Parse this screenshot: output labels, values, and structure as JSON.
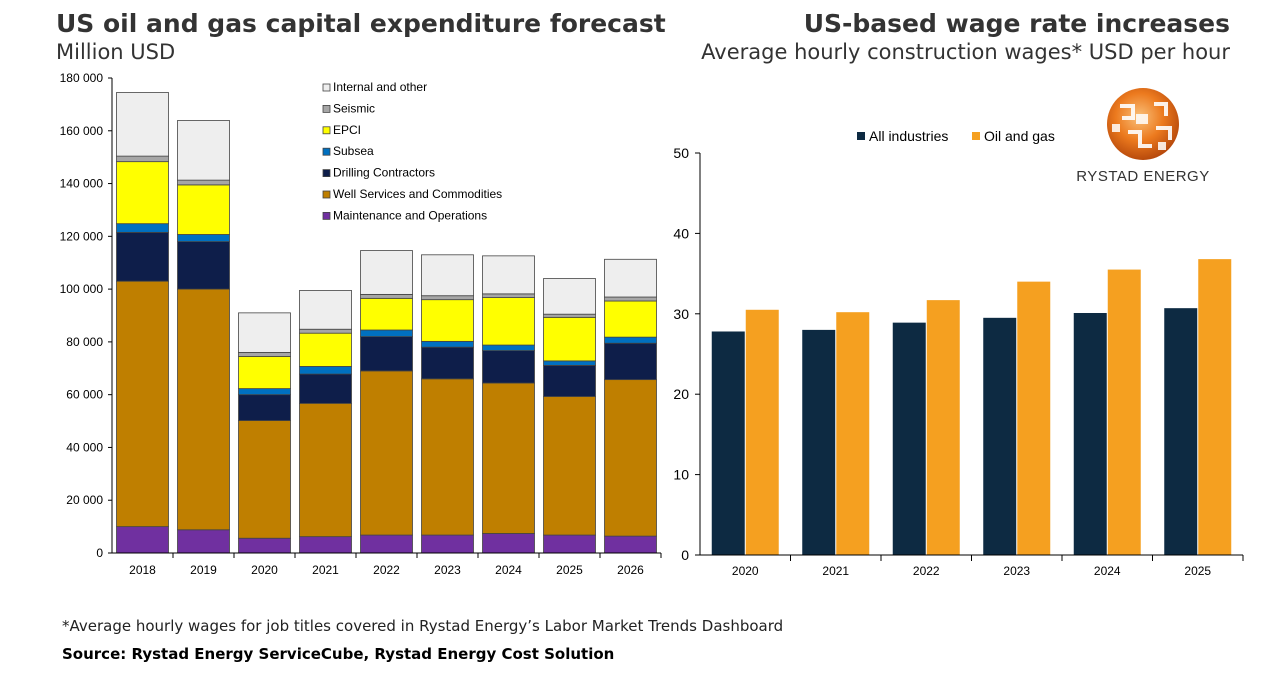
{
  "header": {
    "left_title": "US oil and gas capital expenditure forecast",
    "left_subtitle": "Million USD",
    "right_title": "US-based wage rate increases",
    "right_subtitle": "Average hourly construction wages* USD per hour"
  },
  "footer": {
    "footnote": "*Average hourly wages for job titles covered in Rystad Energy’s Labor Market Trends Dashboard",
    "source": "Source: Rystad Energy ServiceCube, Rystad Energy Cost Solution"
  },
  "logo": {
    "text": "RYSTAD ENERGY",
    "icon": "rystad-globe-icon"
  },
  "chart_data": [
    {
      "type": "bar",
      "stacked": true,
      "title": "US oil and gas capital expenditure forecast",
      "ylabel": "Million USD",
      "xlabel": "",
      "ylim": [
        0,
        180000
      ],
      "yticks": [
        0,
        20000,
        40000,
        60000,
        80000,
        100000,
        120000,
        140000,
        160000,
        180000
      ],
      "ytick_labels": [
        "0",
        "20 000",
        "40 000",
        "60 000",
        "80 000",
        "100 000",
        "120 000",
        "140 000",
        "160 000",
        "180 000"
      ],
      "categories": [
        "2018",
        "2019",
        "2020",
        "2021",
        "2022",
        "2023",
        "2024",
        "2025",
        "2026"
      ],
      "legend_position": "top-center",
      "series": [
        {
          "name": "Maintenance and Operations",
          "color": "#7030a0",
          "values": [
            10000,
            8800,
            5600,
            6200,
            6800,
            6800,
            7400,
            6800,
            6400
          ]
        },
        {
          "name": "Well Services and Commodities",
          "color": "#bf7f00",
          "values": [
            93000,
            91200,
            44600,
            50500,
            62200,
            59200,
            57000,
            52500,
            59300
          ]
        },
        {
          "name": "Drilling Contractors",
          "color": "#0e1e4a",
          "values": [
            18500,
            18000,
            9800,
            11100,
            13000,
            12000,
            12300,
            11800,
            13800
          ]
        },
        {
          "name": "Subsea",
          "color": "#0070c0",
          "values": [
            3300,
            2700,
            2300,
            2900,
            2500,
            2200,
            2100,
            1700,
            2300
          ]
        },
        {
          "name": "EPCI",
          "color": "#ffff00",
          "values": [
            23500,
            18800,
            12200,
            12600,
            12000,
            15800,
            18000,
            16500,
            13700
          ]
        },
        {
          "name": "Seismic",
          "color": "#a6a6a6",
          "values": [
            2100,
            1800,
            1500,
            1500,
            1500,
            1500,
            1400,
            1200,
            1500
          ]
        },
        {
          "name": "Internal and other",
          "color": "#eeeeee",
          "values": [
            24100,
            22600,
            15000,
            14700,
            16600,
            15500,
            14400,
            13500,
            14300
          ]
        }
      ]
    },
    {
      "type": "bar",
      "stacked": false,
      "title": "US-based wage rate increases",
      "ylabel": "Average hourly construction wages* USD per hour",
      "xlabel": "",
      "ylim": [
        0,
        50
      ],
      "yticks": [
        0,
        10,
        20,
        30,
        40,
        50
      ],
      "ytick_labels": [
        "0",
        "10",
        "20",
        "30",
        "40",
        "50"
      ],
      "categories": [
        "2020",
        "2021",
        "2022",
        "2023",
        "2024",
        "2025"
      ],
      "legend_position": "top-left",
      "series": [
        {
          "name": "All industries",
          "color": "#0d2a42",
          "values": [
            27.8,
            28.0,
            28.9,
            29.5,
            30.1,
            30.7
          ]
        },
        {
          "name": "Oil and gas",
          "color": "#f5a020",
          "values": [
            30.5,
            30.2,
            31.7,
            34.0,
            35.5,
            36.8
          ]
        }
      ]
    }
  ]
}
